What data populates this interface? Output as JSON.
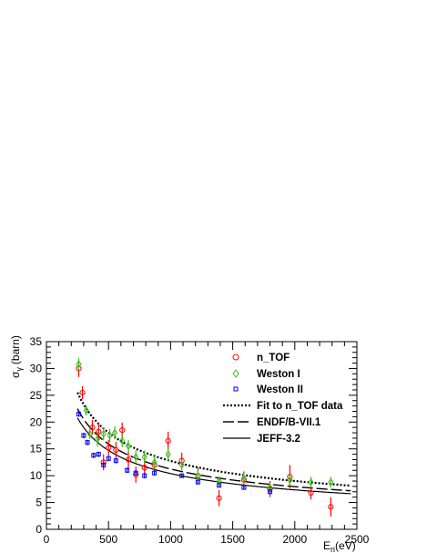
{
  "chart_data": {
    "type": "scatter",
    "xlabel_main": "E",
    "xlabel_sub": "n",
    "xlabel_unit": "(eV)",
    "ylabel_main": "σ",
    "ylabel_sub": "γ",
    "ylabel_unit": "(barn)",
    "xlim": [
      0,
      2500
    ],
    "ylim": [
      0,
      35
    ],
    "xticks": [
      0,
      500,
      1000,
      1500,
      2000,
      2500
    ],
    "yticks": [
      0,
      5,
      10,
      15,
      20,
      25,
      30,
      35
    ],
    "legend_position": "top-right",
    "series": [
      {
        "name": "n_TOF",
        "style": "open-circle",
        "color": "#ff0000",
        "x": [
          260,
          290,
          370,
          420,
          460,
          500,
          560,
          610,
          660,
          720,
          790,
          870,
          980,
          1090,
          1220,
          1390,
          1590,
          1800,
          1960,
          2130,
          2290
        ],
        "y": [
          30.0,
          25.5,
          19.0,
          18.2,
          12.5,
          15.2,
          14.8,
          18.5,
          13.0,
          10.2,
          11.5,
          12.0,
          16.5,
          12.8,
          10.0,
          5.8,
          9.2,
          7.5,
          9.8,
          6.8,
          4.2
        ],
        "err": [
          1.6,
          1.2,
          1.4,
          1.6,
          1.5,
          1.5,
          1.5,
          1.4,
          1.6,
          1.5,
          1.4,
          1.5,
          1.7,
          1.5,
          1.5,
          1.5,
          1.6,
          1.5,
          2.2,
          1.2,
          1.8
        ]
      },
      {
        "name": "Weston I",
        "style": "open-diamond",
        "color": "#44bb22",
        "x": [
          260,
          320,
          350,
          410,
          460,
          510,
          550,
          610,
          660,
          720,
          790,
          870,
          980,
          1090,
          1220,
          1390,
          1590,
          1800,
          1960,
          2130,
          2290
        ],
        "y": [
          30.8,
          22.2,
          17.8,
          16.8,
          17.8,
          17.5,
          18.0,
          16.5,
          15.5,
          13.5,
          13.5,
          12.5,
          14.0,
          12.0,
          10.0,
          9.0,
          9.5,
          7.8,
          9.2,
          8.8,
          8.8
        ],
        "err": [
          1.2,
          1.0,
          1.0,
          1.4,
          1.2,
          1.2,
          1.2,
          1.2,
          1.2,
          1.2,
          1.2,
          1.2,
          1.2,
          1.0,
          1.0,
          0.9,
          1.0,
          0.9,
          1.0,
          1.0,
          1.0
        ]
      },
      {
        "name": "Weston II",
        "style": "open-square",
        "color": "#0000ee",
        "x": [
          260,
          300,
          330,
          380,
          420,
          460,
          500,
          560,
          650,
          720,
          790,
          870,
          1090,
          1220,
          1390,
          1590,
          1800
        ],
        "y": [
          21.5,
          17.5,
          16.2,
          13.8,
          14.0,
          12.0,
          13.2,
          12.8,
          11.0,
          10.5,
          10.0,
          10.5,
          10.0,
          8.8,
          8.2,
          7.8,
          7.0
        ],
        "err": [
          0.5,
          0.5,
          0.5,
          0.5,
          0.5,
          0.5,
          0.5,
          0.5,
          0.5,
          0.5,
          0.5,
          0.5,
          0.4,
          0.4,
          0.4,
          0.4,
          0.4
        ]
      }
    ],
    "curves": [
      {
        "name": "Fit to n_TOF data",
        "style": "dotted",
        "x_range": [
          250,
          2450
        ],
        "y_at_250": 25.5
      },
      {
        "name": "ENDF/B-VII.1",
        "style": "long-dash",
        "x_range": [
          250,
          2450
        ],
        "y_at_250": 22.5
      },
      {
        "name": "JEFF-3.2",
        "style": "solid",
        "x_range": [
          250,
          2450
        ],
        "y_at_250": 20.8
      }
    ]
  }
}
